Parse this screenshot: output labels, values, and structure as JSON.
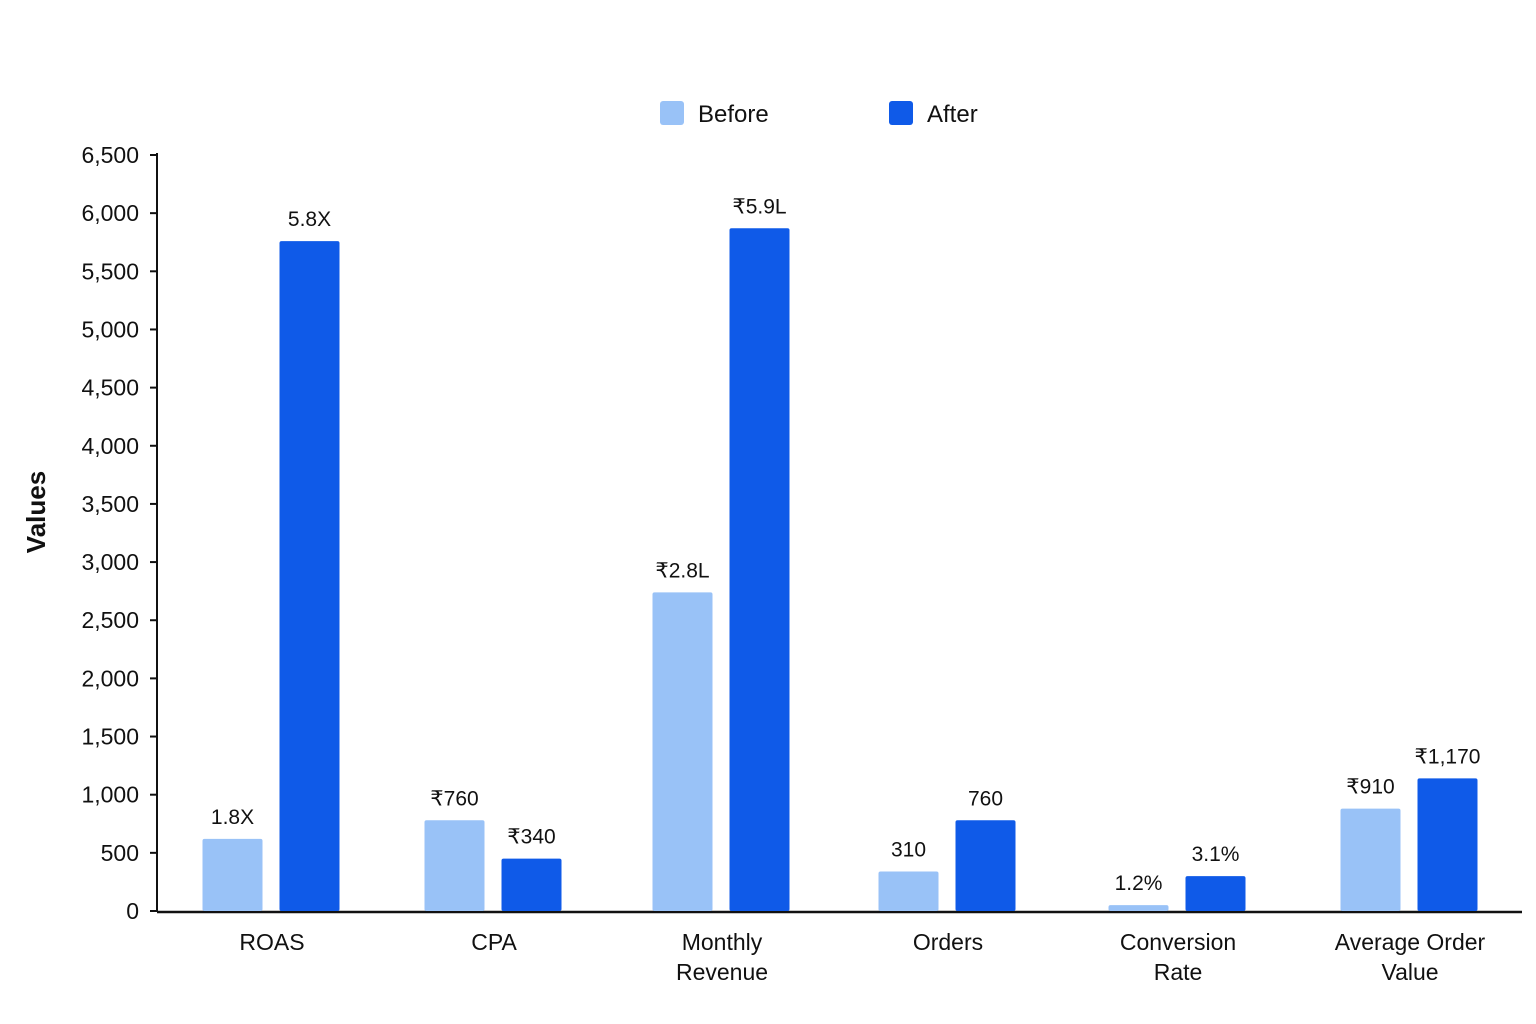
{
  "chart_data": {
    "type": "bar",
    "title": "",
    "xlabel": "",
    "ylabel": "Values",
    "ylim": [
      0,
      6500
    ],
    "ytick_values": [
      0,
      500,
      1000,
      1500,
      2000,
      2500,
      3000,
      3500,
      4000,
      4500,
      5000,
      5500,
      6000,
      6500
    ],
    "ytick_labels": [
      "0",
      "500",
      "1,000",
      "1,500",
      "2,000",
      "2,500",
      "3,000",
      "3,500",
      "4,000",
      "4,500",
      "5,000",
      "5,500",
      "6,000",
      "6,500"
    ],
    "categories": [
      [
        "ROAS"
      ],
      [
        "CPA"
      ],
      [
        "Monthly",
        "Revenue"
      ],
      [
        "Orders"
      ],
      [
        "Conversion",
        "Rate"
      ],
      [
        "Average Order",
        "Value"
      ]
    ],
    "series": [
      {
        "name": "Before",
        "color": "#99c2f7",
        "values": [
          620,
          780,
          2740,
          340,
          50,
          880
        ],
        "data_labels": [
          "1.8X",
          "₹760",
          "₹2.8L",
          "310",
          "1.2%",
          "₹910"
        ]
      },
      {
        "name": "After",
        "color": "#0f5ae8",
        "values": [
          5760,
          450,
          5870,
          780,
          300,
          1140
        ],
        "data_labels": [
          "5.8X",
          "₹340",
          "₹5.9L",
          "760",
          "3.1%",
          "₹1,170"
        ]
      }
    ],
    "legend_position": "top-center",
    "grid": false
  }
}
